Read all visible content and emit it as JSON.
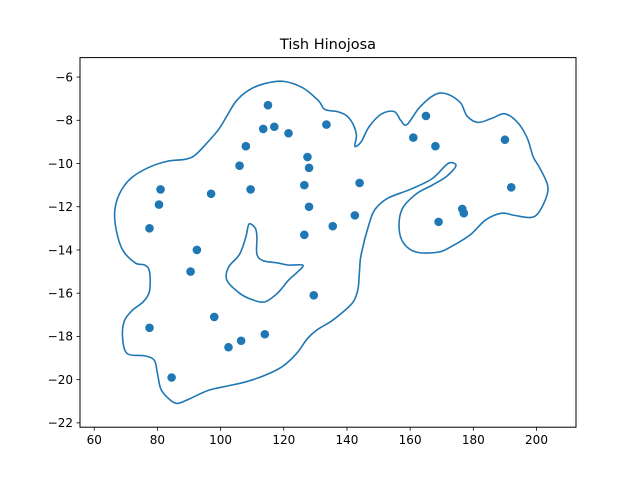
{
  "chart_data": {
    "type": "scatter",
    "title": "Tish Hinojosa",
    "xlabel": "",
    "ylabel": "",
    "xlim": [
      55.5,
      212.5
    ],
    "ylim": [
      -22.2,
      -5.1
    ],
    "xticks": [
      60,
      80,
      100,
      120,
      140,
      160,
      180,
      200
    ],
    "yticks": [
      -22,
      -20,
      -18,
      -16,
      -14,
      -12,
      -10,
      -8,
      -6
    ],
    "grid": false,
    "colors": {
      "series": "#1f77b4",
      "axes": "#000000",
      "background": "#ffffff"
    },
    "series": [
      {
        "kind": "points",
        "points": [
          [
            115,
            -7.3
          ],
          [
            117,
            -8.3
          ],
          [
            113.5,
            -8.4
          ],
          [
            121.5,
            -8.6
          ],
          [
            133.5,
            -8.2
          ],
          [
            108,
            -9.2
          ],
          [
            106,
            -10.1
          ],
          [
            127.5,
            -9.7
          ],
          [
            128,
            -10.2
          ],
          [
            126.5,
            -11.0
          ],
          [
            109.5,
            -11.2
          ],
          [
            97,
            -11.4
          ],
          [
            81,
            -11.2
          ],
          [
            80.5,
            -11.9
          ],
          [
            77.5,
            -13.0
          ],
          [
            128,
            -12.0
          ],
          [
            126.5,
            -13.3
          ],
          [
            135.5,
            -12.9
          ],
          [
            142.5,
            -12.4
          ],
          [
            144,
            -10.9
          ],
          [
            161,
            -8.8
          ],
          [
            165,
            -7.8
          ],
          [
            168,
            -9.2
          ],
          [
            176.5,
            -12.1
          ],
          [
            177,
            -12.3
          ],
          [
            169,
            -12.7
          ],
          [
            190,
            -8.9
          ],
          [
            192,
            -11.1
          ],
          [
            92.5,
            -14.0
          ],
          [
            90.5,
            -15.0
          ],
          [
            129.5,
            -16.1
          ],
          [
            98,
            -17.1
          ],
          [
            77.5,
            -17.6
          ],
          [
            102.5,
            -18.5
          ],
          [
            106.5,
            -18.2
          ],
          [
            114,
            -17.9
          ],
          [
            84.5,
            -19.9
          ]
        ]
      },
      {
        "kind": "contour",
        "paths": [
          [
            [
              83,
              -20.8
            ],
            [
              81,
              -20.4
            ],
            [
              80,
              -19.7
            ],
            [
              79,
              -19.1
            ],
            [
              76,
              -18.9
            ],
            [
              70.5,
              -18.8
            ],
            [
              69,
              -18.1
            ],
            [
              69.5,
              -17.3
            ],
            [
              72,
              -16.8
            ],
            [
              75.5,
              -16.4
            ],
            [
              77.5,
              -15.9
            ],
            [
              77.5,
              -15.0
            ],
            [
              76,
              -14.7
            ],
            [
              73,
              -14.6
            ],
            [
              69,
              -14.0
            ],
            [
              67,
              -13.1
            ],
            [
              66.5,
              -12.2
            ],
            [
              68,
              -11.4
            ],
            [
              71.5,
              -10.7
            ],
            [
              77,
              -10.2
            ],
            [
              83,
              -9.9
            ],
            [
              89,
              -9.8
            ],
            [
              92,
              -9.6
            ],
            [
              96,
              -9.0
            ],
            [
              99.5,
              -8.4
            ],
            [
              102,
              -7.8
            ],
            [
              105,
              -7.1
            ],
            [
              109,
              -6.6
            ],
            [
              114,
              -6.3
            ],
            [
              120,
              -6.2
            ],
            [
              126,
              -6.5
            ],
            [
              131,
              -7.1
            ],
            [
              133,
              -7.5
            ],
            [
              137,
              -7.6
            ],
            [
              140,
              -7.8
            ],
            [
              142,
              -8.2
            ],
            [
              143,
              -8.7
            ],
            [
              142.5,
              -9.2
            ],
            [
              144.5,
              -9.0
            ],
            [
              147,
              -8.3
            ],
            [
              151,
              -7.7
            ],
            [
              155,
              -7.6
            ],
            [
              157,
              -8.0
            ],
            [
              159,
              -8.2
            ],
            [
              163,
              -7.4
            ],
            [
              168,
              -6.8
            ],
            [
              172,
              -6.8
            ],
            [
              176,
              -7.2
            ],
            [
              178,
              -7.8
            ],
            [
              181.5,
              -8.1
            ],
            [
              186,
              -7.9
            ],
            [
              190,
              -7.7
            ],
            [
              194,
              -8.1
            ],
            [
              197,
              -8.8
            ],
            [
              199,
              -9.7
            ],
            [
              201,
              -10.2
            ],
            [
              203.5,
              -11.0
            ],
            [
              203,
              -11.6
            ],
            [
              200.5,
              -12.3
            ],
            [
              198,
              -12.5
            ],
            [
              193,
              -12.4
            ],
            [
              189,
              -12.3
            ],
            [
              184,
              -12.6
            ],
            [
              179,
              -13.3
            ],
            [
              173.5,
              -13.8
            ],
            [
              169,
              -14.1
            ],
            [
              162,
              -14.1
            ],
            [
              158,
              -13.7
            ],
            [
              156.5,
              -13.0
            ],
            [
              157.5,
              -12.1
            ],
            [
              162,
              -11.4
            ],
            [
              167,
              -11.0
            ],
            [
              171.5,
              -10.6
            ],
            [
              174.5,
              -10.1
            ],
            [
              172,
              -10.0
            ],
            [
              167,
              -10.7
            ],
            [
              160,
              -11.2
            ],
            [
              153,
              -11.6
            ],
            [
              149,
              -12.1
            ],
            [
              147,
              -12.8
            ],
            [
              144.5,
              -14.2
            ],
            [
              144,
              -14.9
            ],
            [
              143.5,
              -15.8
            ],
            [
              142,
              -16.4
            ],
            [
              138.5,
              -16.9
            ],
            [
              135,
              -17.3
            ],
            [
              130.5,
              -17.7
            ],
            [
              127.5,
              -18.1
            ],
            [
              124,
              -18.8
            ],
            [
              119.5,
              -19.4
            ],
            [
              114,
              -19.8
            ],
            [
              108,
              -20.1
            ],
            [
              102,
              -20.3
            ],
            [
              96,
              -20.5
            ],
            [
              90,
              -20.9
            ],
            [
              86,
              -21.1
            ],
            [
              83,
              -20.8
            ]
          ],
          [
            [
              109,
              -12.8
            ],
            [
              111,
              -13.0
            ],
            [
              111.5,
              -13.4
            ],
            [
              111.5,
              -14.2
            ],
            [
              113.5,
              -14.5
            ],
            [
              118,
              -14.6
            ],
            [
              121.5,
              -14.7
            ],
            [
              126,
              -14.7
            ],
            [
              124.5,
              -15.0
            ],
            [
              121.5,
              -15.4
            ],
            [
              118,
              -16.0
            ],
            [
              114,
              -16.4
            ],
            [
              110,
              -16.3
            ],
            [
              106,
              -16.0
            ],
            [
              102,
              -15.4
            ],
            [
              102.5,
              -14.8
            ],
            [
              106,
              -14.2
            ],
            [
              108,
              -13.4
            ],
            [
              109,
              -12.8
            ]
          ]
        ]
      }
    ]
  }
}
